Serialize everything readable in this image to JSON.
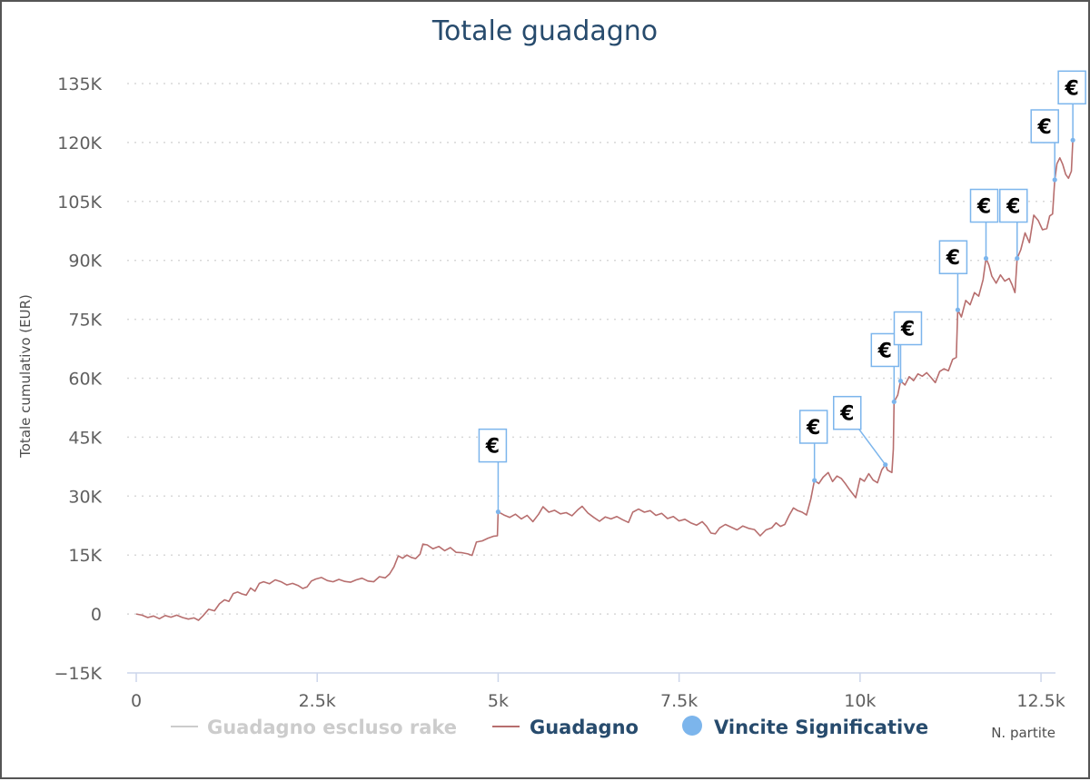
{
  "chart_data": {
    "type": "line",
    "title": "Totale guadagno",
    "ylabel": "Totale cumulativo (EUR)",
    "xlabel": "N. partite",
    "xlim": [
      0,
      12700
    ],
    "ylim": [
      -15000,
      135000
    ],
    "x_ticks": [
      0,
      2500,
      5000,
      7500,
      10000,
      12500
    ],
    "x_tick_labels": [
      "0",
      "2.5k",
      "5k",
      "7.5k",
      "10k",
      "12.5k"
    ],
    "y_ticks": [
      -15000,
      0,
      15000,
      30000,
      45000,
      60000,
      75000,
      90000,
      105000,
      120000,
      135000
    ],
    "y_tick_labels": [
      "−15K",
      "0",
      "15K",
      "30K",
      "45K",
      "60K",
      "75K",
      "90K",
      "105K",
      "120K",
      "135K"
    ],
    "grid": "horizontal dotted",
    "legend_position": "bottom",
    "series": [
      {
        "name": "Guadagno escluso rake",
        "color": "#cccccc",
        "hidden": true,
        "points": []
      },
      {
        "name": "Guadagno",
        "color": "#b76e6e",
        "points": [
          [
            0,
            0
          ],
          [
            80,
            -300
          ],
          [
            160,
            -900
          ],
          [
            240,
            -500
          ],
          [
            320,
            -1200
          ],
          [
            400,
            -400
          ],
          [
            480,
            -800
          ],
          [
            560,
            -300
          ],
          [
            640,
            -900
          ],
          [
            720,
            -1300
          ],
          [
            800,
            -1000
          ],
          [
            860,
            -1600
          ],
          [
            920,
            -500
          ],
          [
            1000,
            1200
          ],
          [
            1080,
            800
          ],
          [
            1150,
            2600
          ],
          [
            1220,
            3600
          ],
          [
            1280,
            3200
          ],
          [
            1340,
            5200
          ],
          [
            1400,
            5600
          ],
          [
            1460,
            5100
          ],
          [
            1520,
            4800
          ],
          [
            1580,
            6600
          ],
          [
            1640,
            5800
          ],
          [
            1700,
            7800
          ],
          [
            1760,
            8200
          ],
          [
            1840,
            7700
          ],
          [
            1920,
            8700
          ],
          [
            2000,
            8200
          ],
          [
            2080,
            7400
          ],
          [
            2160,
            7800
          ],
          [
            2240,
            7200
          ],
          [
            2300,
            6500
          ],
          [
            2360,
            6900
          ],
          [
            2420,
            8400
          ],
          [
            2480,
            8900
          ],
          [
            2560,
            9300
          ],
          [
            2640,
            8500
          ],
          [
            2720,
            8200
          ],
          [
            2800,
            8800
          ],
          [
            2880,
            8300
          ],
          [
            2960,
            8100
          ],
          [
            3040,
            8700
          ],
          [
            3120,
            9100
          ],
          [
            3200,
            8400
          ],
          [
            3280,
            8200
          ],
          [
            3360,
            9500
          ],
          [
            3440,
            9200
          ],
          [
            3500,
            10200
          ],
          [
            3560,
            12000
          ],
          [
            3620,
            14800
          ],
          [
            3680,
            14200
          ],
          [
            3740,
            15000
          ],
          [
            3800,
            14400
          ],
          [
            3860,
            14100
          ],
          [
            3920,
            15200
          ],
          [
            3960,
            17800
          ],
          [
            4020,
            17600
          ],
          [
            4100,
            16600
          ],
          [
            4180,
            17200
          ],
          [
            4260,
            16100
          ],
          [
            4340,
            16900
          ],
          [
            4420,
            15700
          ],
          [
            4500,
            15600
          ],
          [
            4580,
            15300
          ],
          [
            4640,
            14900
          ],
          [
            4700,
            18300
          ],
          [
            4780,
            18600
          ],
          [
            4860,
            19300
          ],
          [
            4940,
            19800
          ],
          [
            4990,
            19900
          ],
          [
            5000,
            26000
          ],
          [
            5080,
            25200
          ],
          [
            5160,
            24600
          ],
          [
            5240,
            25400
          ],
          [
            5320,
            24200
          ],
          [
            5400,
            25100
          ],
          [
            5480,
            23500
          ],
          [
            5560,
            25400
          ],
          [
            5620,
            27300
          ],
          [
            5700,
            25900
          ],
          [
            5780,
            26400
          ],
          [
            5860,
            25500
          ],
          [
            5940,
            25800
          ],
          [
            6020,
            25000
          ],
          [
            6100,
            26500
          ],
          [
            6160,
            27400
          ],
          [
            6240,
            25700
          ],
          [
            6320,
            24600
          ],
          [
            6400,
            23600
          ],
          [
            6480,
            24700
          ],
          [
            6560,
            24200
          ],
          [
            6640,
            24800
          ],
          [
            6720,
            24000
          ],
          [
            6800,
            23300
          ],
          [
            6860,
            25900
          ],
          [
            6940,
            26700
          ],
          [
            7020,
            25900
          ],
          [
            7100,
            26300
          ],
          [
            7180,
            25100
          ],
          [
            7260,
            25600
          ],
          [
            7340,
            24300
          ],
          [
            7420,
            24800
          ],
          [
            7500,
            23700
          ],
          [
            7580,
            24100
          ],
          [
            7660,
            23200
          ],
          [
            7740,
            22600
          ],
          [
            7820,
            23500
          ],
          [
            7880,
            22300
          ],
          [
            7940,
            20600
          ],
          [
            8000,
            20400
          ],
          [
            8060,
            21900
          ],
          [
            8140,
            22800
          ],
          [
            8220,
            22100
          ],
          [
            8300,
            21400
          ],
          [
            8380,
            22400
          ],
          [
            8460,
            21800
          ],
          [
            8540,
            21500
          ],
          [
            8620,
            19900
          ],
          [
            8700,
            21400
          ],
          [
            8780,
            21900
          ],
          [
            8840,
            23200
          ],
          [
            8900,
            22300
          ],
          [
            8960,
            22800
          ],
          [
            9020,
            25100
          ],
          [
            9080,
            27000
          ],
          [
            9140,
            26300
          ],
          [
            9200,
            25900
          ],
          [
            9260,
            25200
          ],
          [
            9320,
            29300
          ],
          [
            9370,
            34000
          ],
          [
            9430,
            33200
          ],
          [
            9490,
            34800
          ],
          [
            9560,
            36000
          ],
          [
            9620,
            33700
          ],
          [
            9680,
            35100
          ],
          [
            9740,
            34500
          ],
          [
            9800,
            33100
          ],
          [
            9860,
            31500
          ],
          [
            9940,
            29600
          ],
          [
            10000,
            34500
          ],
          [
            10060,
            33800
          ],
          [
            10120,
            35700
          ],
          [
            10180,
            34100
          ],
          [
            10240,
            33400
          ],
          [
            10300,
            36700
          ],
          [
            10350,
            38000
          ],
          [
            10380,
            36600
          ],
          [
            10440,
            36000
          ],
          [
            10460,
            42000
          ],
          [
            10470,
            54000
          ],
          [
            10520,
            55700
          ],
          [
            10560,
            59300
          ],
          [
            10620,
            58300
          ],
          [
            10680,
            60400
          ],
          [
            10740,
            59400
          ],
          [
            10800,
            61100
          ],
          [
            10860,
            60500
          ],
          [
            10920,
            61400
          ],
          [
            10980,
            60200
          ],
          [
            11040,
            58900
          ],
          [
            11100,
            61700
          ],
          [
            11160,
            62400
          ],
          [
            11220,
            61900
          ],
          [
            11280,
            64800
          ],
          [
            11330,
            65300
          ],
          [
            11350,
            77400
          ],
          [
            11400,
            75600
          ],
          [
            11460,
            79800
          ],
          [
            11520,
            78700
          ],
          [
            11580,
            81800
          ],
          [
            11640,
            80900
          ],
          [
            11700,
            85100
          ],
          [
            11740,
            90500
          ],
          [
            11780,
            88800
          ],
          [
            11820,
            86000
          ],
          [
            11880,
            84200
          ],
          [
            11940,
            86300
          ],
          [
            12000,
            84700
          ],
          [
            12060,
            85400
          ],
          [
            12100,
            83800
          ],
          [
            12140,
            81800
          ],
          [
            12170,
            90500
          ],
          [
            12220,
            92700
          ],
          [
            12280,
            97000
          ],
          [
            12340,
            94500
          ],
          [
            12400,
            101500
          ],
          [
            12460,
            100200
          ],
          [
            12520,
            97800
          ],
          [
            12580,
            98100
          ],
          [
            12620,
            101300
          ],
          [
            12660,
            101800
          ],
          [
            12690,
            110500
          ],
          [
            12720,
            114600
          ],
          [
            12760,
            116100
          ],
          [
            12800,
            114400
          ],
          [
            12840,
            111900
          ],
          [
            12880,
            110900
          ],
          [
            12920,
            112700
          ],
          [
            12940,
            120600
          ]
        ]
      },
      {
        "name": "Vincite Significative",
        "color": "#7cb5ec",
        "marker_label": "€",
        "points": [
          [
            5000,
            26000
          ],
          [
            9370,
            34000
          ],
          [
            10350,
            38000
          ],
          [
            10470,
            54000
          ],
          [
            10560,
            59300
          ],
          [
            11350,
            77400
          ],
          [
            11740,
            90500
          ],
          [
            12170,
            90500
          ],
          [
            12690,
            110500
          ],
          [
            12940,
            120600
          ]
        ]
      }
    ]
  }
}
